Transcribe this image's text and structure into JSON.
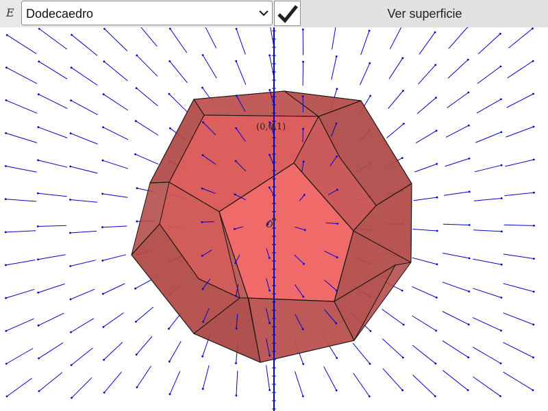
{
  "toolbar": {
    "variable_label": "E",
    "selected_option": "Dodecaedro",
    "surface_button_label": "Ver superficie"
  },
  "scene": {
    "point_label": "(0,0,1)",
    "origin_label": "O",
    "solid_color": "#b94a48",
    "front_face_color": "#f26868",
    "vector_color": "#0000cc",
    "axis_color": "#0000aa"
  },
  "icons": {
    "dropdown": "chevron-down-icon",
    "confirm": "check-icon"
  }
}
